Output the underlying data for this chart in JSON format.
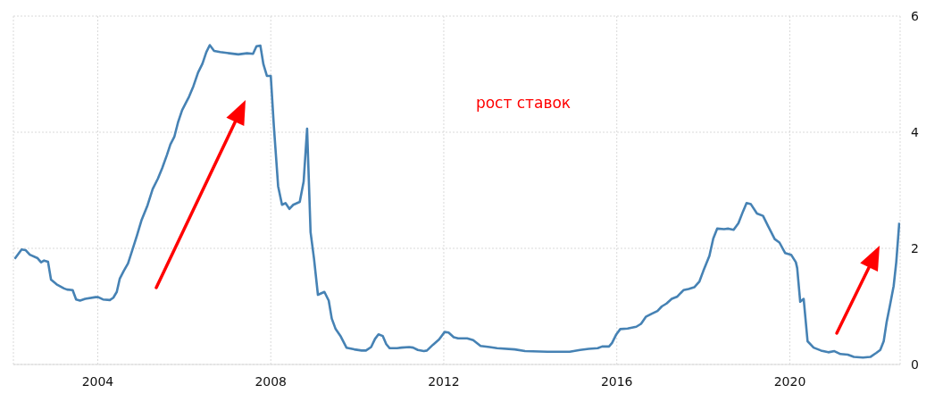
{
  "chart_data": {
    "type": "line",
    "color": "#4682b4",
    "line_style": "solid",
    "grid": true,
    "xlim": [
      2002.05,
      2022.55
    ],
    "xticks": [
      2004,
      2008,
      2012,
      2016,
      2020
    ],
    "ylim": [
      0,
      6
    ],
    "yticks": [
      0,
      2,
      4,
      6
    ],
    "annotations": [
      "рост ставок"
    ],
    "x": [
      2002.08,
      2002.24,
      2002.33,
      2002.43,
      2002.61,
      2002.69,
      2002.76,
      2002.85,
      2002.92,
      2003.05,
      2003.22,
      2003.29,
      2003.42,
      2003.5,
      2003.59,
      2003.71,
      2003.95,
      2004.01,
      2004.12,
      2004.28,
      2004.36,
      2004.44,
      2004.51,
      2004.6,
      2004.7,
      2004.8,
      2004.91,
      2005.01,
      2005.15,
      2005.27,
      2005.39,
      2005.49,
      2005.6,
      2005.68,
      2005.77,
      2005.86,
      2005.95,
      2006.04,
      2006.11,
      2006.21,
      2006.32,
      2006.42,
      2006.51,
      2006.59,
      2006.69,
      2006.83,
      2007.04,
      2007.25,
      2007.45,
      2007.59,
      2007.67,
      2007.76,
      2007.83,
      2007.91,
      2008.0,
      2008.07,
      2008.17,
      2008.26,
      2008.34,
      2008.43,
      2008.52,
      2008.67,
      2008.76,
      2008.84,
      2008.92,
      2009.0,
      2009.09,
      2009.24,
      2009.34,
      2009.41,
      2009.5,
      2009.62,
      2009.75,
      2009.93,
      2010.1,
      2010.2,
      2010.32,
      2010.41,
      2010.49,
      2010.59,
      2010.67,
      2010.75,
      2010.92,
      2011.02,
      2011.2,
      2011.29,
      2011.4,
      2011.54,
      2011.61,
      2011.75,
      2011.89,
      2012.02,
      2012.11,
      2012.23,
      2012.33,
      2012.54,
      2012.68,
      2012.85,
      2013.06,
      2013.23,
      2013.64,
      2013.88,
      2014.4,
      2014.91,
      2015.15,
      2015.35,
      2015.56,
      2015.66,
      2015.82,
      2015.89,
      2015.99,
      2016.08,
      2016.25,
      2016.45,
      2016.56,
      2016.67,
      2016.8,
      2016.94,
      2017.04,
      2017.15,
      2017.27,
      2017.4,
      2017.54,
      2017.66,
      2017.79,
      2017.91,
      2018.0,
      2018.14,
      2018.23,
      2018.32,
      2018.48,
      2018.58,
      2018.7,
      2018.81,
      2018.92,
      2019.0,
      2019.1,
      2019.24,
      2019.38,
      2019.5,
      2019.65,
      2019.76,
      2019.89,
      2020.03,
      2020.14,
      2020.17,
      2020.24,
      2020.32,
      2020.41,
      2020.55,
      2020.72,
      2020.89,
      2021.03,
      2021.17,
      2021.34,
      2021.48,
      2021.69,
      2021.86,
      2022.0,
      2022.09,
      2022.17,
      2022.24,
      2022.31,
      2022.4,
      2022.46,
      2022.53
    ],
    "values": [
      1.82,
      1.98,
      1.97,
      1.89,
      1.83,
      1.76,
      1.79,
      1.77,
      1.46,
      1.38,
      1.31,
      1.29,
      1.28,
      1.12,
      1.1,
      1.13,
      1.16,
      1.16,
      1.12,
      1.11,
      1.15,
      1.25,
      1.48,
      1.61,
      1.74,
      1.97,
      2.23,
      2.48,
      2.74,
      3.02,
      3.2,
      3.38,
      3.61,
      3.79,
      3.92,
      4.18,
      4.38,
      4.51,
      4.61,
      4.79,
      5.03,
      5.18,
      5.38,
      5.5,
      5.4,
      5.38,
      5.36,
      5.34,
      5.36,
      5.35,
      5.48,
      5.49,
      5.17,
      4.97,
      4.97,
      4.12,
      3.07,
      2.75,
      2.78,
      2.68,
      2.75,
      2.8,
      3.15,
      4.06,
      2.28,
      1.82,
      1.2,
      1.25,
      1.1,
      0.79,
      0.61,
      0.48,
      0.29,
      0.26,
      0.24,
      0.24,
      0.3,
      0.44,
      0.52,
      0.49,
      0.35,
      0.28,
      0.28,
      0.29,
      0.3,
      0.29,
      0.25,
      0.23,
      0.24,
      0.34,
      0.43,
      0.56,
      0.55,
      0.47,
      0.45,
      0.45,
      0.42,
      0.32,
      0.3,
      0.28,
      0.26,
      0.23,
      0.22,
      0.22,
      0.25,
      0.27,
      0.28,
      0.31,
      0.31,
      0.37,
      0.52,
      0.61,
      0.62,
      0.65,
      0.7,
      0.82,
      0.87,
      0.92,
      1.0,
      1.05,
      1.13,
      1.17,
      1.28,
      1.3,
      1.33,
      1.43,
      1.61,
      1.87,
      2.17,
      2.34,
      2.33,
      2.34,
      2.32,
      2.43,
      2.64,
      2.78,
      2.76,
      2.6,
      2.56,
      2.38,
      2.16,
      2.1,
      1.92,
      1.89,
      1.76,
      1.66,
      1.08,
      1.13,
      0.4,
      0.29,
      0.24,
      0.21,
      0.23,
      0.18,
      0.17,
      0.13,
      0.12,
      0.13,
      0.2,
      0.25,
      0.4,
      0.74,
      1.0,
      1.35,
      1.76,
      2.44
    ]
  }
}
